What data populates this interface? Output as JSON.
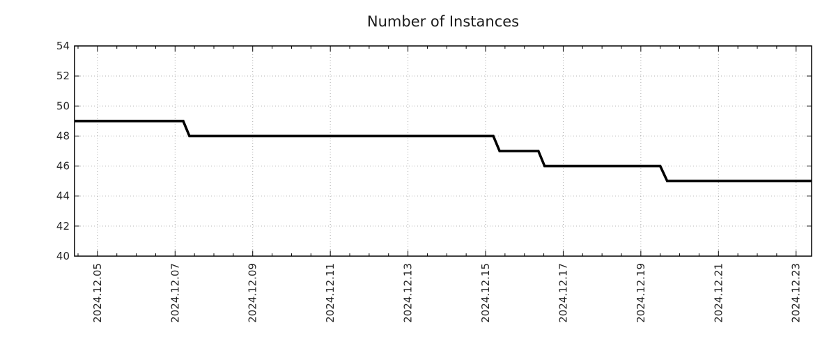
{
  "page": {
    "background": "#ffffff"
  },
  "chart_data": {
    "type": "line",
    "subtype": "step",
    "title": "Number of Instances",
    "legend": false,
    "grid": true,
    "colors": {
      "line": "#000000",
      "grid": "#ababab",
      "axis": "#000000",
      "text": "#262626"
    },
    "x_axis": {
      "unit": "days since 2024-12-01 00:00",
      "min": 3.41,
      "max": 22.4,
      "minor_tick_step": 0.5,
      "major_ticks": [
        {
          "value": 4,
          "label": "2024.12.05"
        },
        {
          "value": 6,
          "label": "2024.12.07"
        },
        {
          "value": 8,
          "label": "2024.12.09"
        },
        {
          "value": 10,
          "label": "2024.12.11"
        },
        {
          "value": 12,
          "label": "2024.12.13"
        },
        {
          "value": 14,
          "label": "2024.12.15"
        },
        {
          "value": 16,
          "label": "2024.12.17"
        },
        {
          "value": 18,
          "label": "2024.12.19"
        },
        {
          "value": 20,
          "label": "2024.12.21"
        },
        {
          "value": 22,
          "label": "2024.12.23"
        }
      ]
    },
    "y_axis": {
      "min": 40,
      "max": 54,
      "tick_step": 2,
      "ticks": [
        40,
        42,
        44,
        46,
        48,
        50,
        52,
        54
      ]
    },
    "series": [
      {
        "name": "instances",
        "points": [
          [
            3.41,
            49
          ],
          [
            6.21,
            49
          ],
          [
            6.37,
            48
          ],
          [
            14.2,
            48
          ],
          [
            14.36,
            47
          ],
          [
            15.36,
            47
          ],
          [
            15.52,
            46
          ],
          [
            18.5,
            46
          ],
          [
            18.68,
            45
          ],
          [
            22.4,
            45
          ]
        ]
      }
    ]
  }
}
